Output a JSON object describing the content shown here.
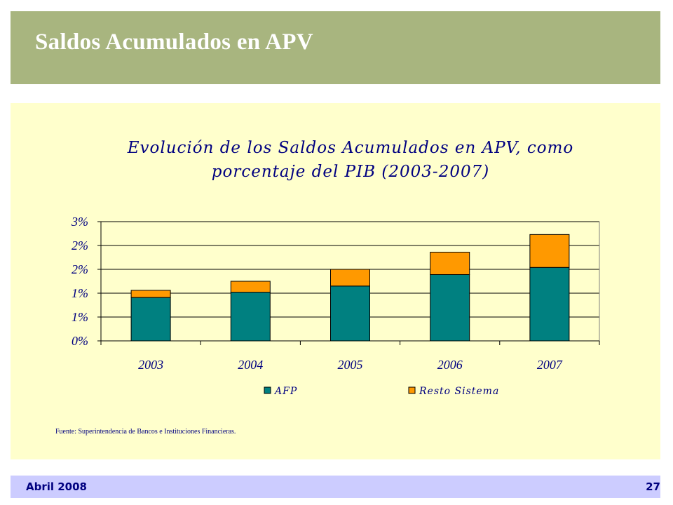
{
  "header": {
    "title": "Saldos Acumulados  en APV"
  },
  "footer": {
    "date": "Abril 2008",
    "page": "27"
  },
  "source": "Fuente: Superintendencia de Bancos e Instituciones Financieras.",
  "colors": {
    "header_bg": "#a8b57f",
    "panel_bg": "#ffffcc",
    "footer_bg": "#ccccff",
    "afp": "#008080",
    "resto": "#ff9900",
    "text": "#000080"
  },
  "chart_data": {
    "type": "bar",
    "stacked": true,
    "title_lines": [
      "Evolución de los Saldos Acumulados en APV, como",
      "porcentaje del PIB (2003-2007)"
    ],
    "categories": [
      "2003",
      "2004",
      "2005",
      "2006",
      "2007"
    ],
    "series": [
      {
        "name": "AFP",
        "values": [
          0.91,
          1.02,
          1.15,
          1.39,
          1.54
        ]
      },
      {
        "name": "Resto Sistema",
        "values": [
          0.15,
          0.23,
          0.35,
          0.47,
          0.69
        ]
      }
    ],
    "ylim": [
      0,
      2.5
    ],
    "yticks": [
      0,
      0.5,
      1.0,
      1.5,
      2.0,
      2.5
    ],
    "ytick_labels": [
      "0%",
      "1%",
      "1%",
      "2%",
      "2%",
      "3%"
    ],
    "grid": true,
    "legend_position": "bottom"
  }
}
